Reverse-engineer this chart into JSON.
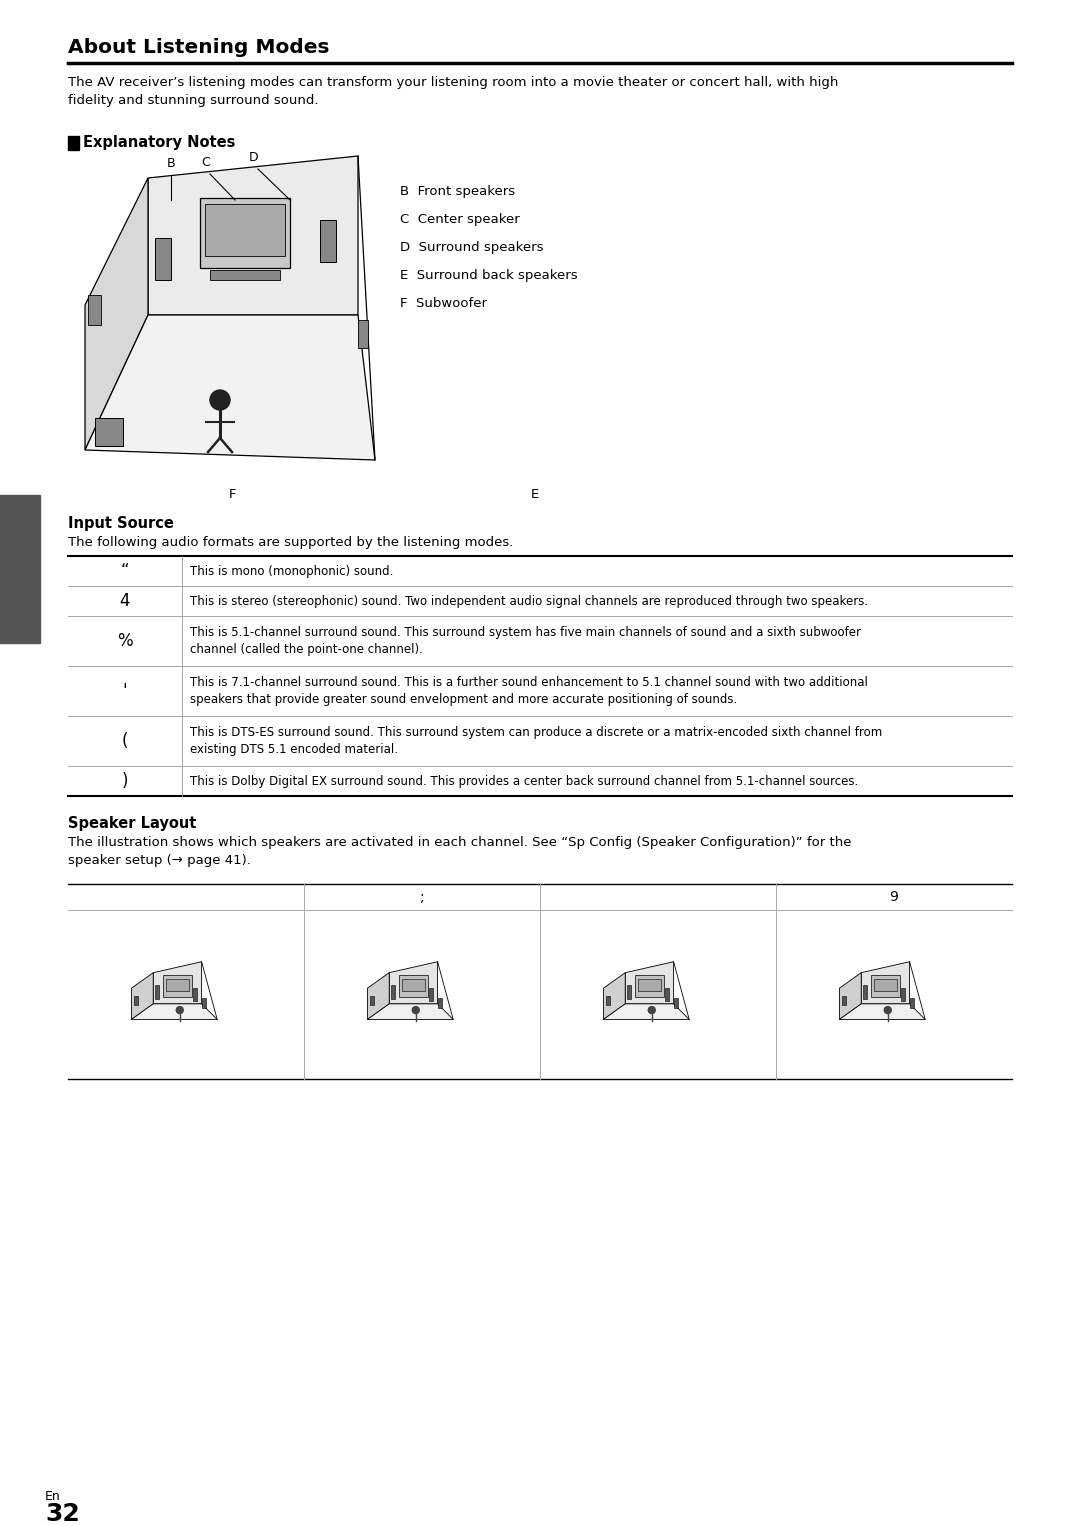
{
  "title": "About Listening Modes",
  "intro_text": "The AV receiver’s listening modes can transform your listening room into a movie theater or concert hall, with high\nfidelity and stunning surround sound.",
  "section1_label": "Explanatory Notes",
  "speaker_labels": [
    "B  Front speakers",
    "C  Center speaker",
    "D  Surround speakers",
    "E  Surround back speakers",
    "F  Subwoofer"
  ],
  "section2_title": "Input Source",
  "section2_text": "The following audio formats are supported by the listening modes.",
  "table_rows": [
    [
      "“",
      "This is mono (monophonic) sound."
    ],
    [
      "4",
      "This is stereo (stereophonic) sound. Two independent audio signal channels are reproduced through two speakers."
    ],
    [
      "%",
      "This is 5.1-channel surround sound. This surround system has five main channels of sound and a sixth subwoofer\nchannel (called the point-one channel)."
    ],
    [
      "'",
      "This is 7.1-channel surround sound. This is a further sound enhancement to 5.1 channel sound with two additional\nspeakers that provide greater sound envelopment and more accurate positioning of sounds."
    ],
    [
      "(",
      "This is DTS-ES surround sound. This surround system can produce a discrete or a matrix-encoded sixth channel from\nexisting DTS 5.1 encoded material."
    ],
    [
      ")",
      "This is Dolby Digital EX surround sound. This provides a center back surround channel from 5.1-channel sources."
    ]
  ],
  "section3_title": "Speaker Layout",
  "section3_text": "The illustration shows which speakers are activated in each channel. See “Sp Config (Speaker Configuration)” for the\nspeaker setup (→ page 41).",
  "layout_headers": [
    "",
    ";",
    "",
    "9"
  ],
  "page_num": "32",
  "page_label": "En",
  "bg_color": "#ffffff",
  "text_color": "#000000"
}
